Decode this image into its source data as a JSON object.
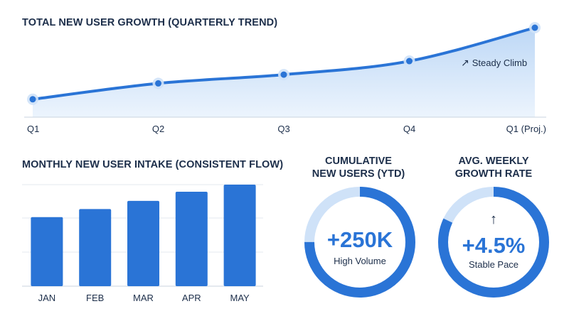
{
  "chart_data": [
    {
      "type": "area",
      "title": "TOTAL NEW USER GROWTH (QUARTERLY TREND)",
      "categories": [
        "Q1",
        "Q2",
        "Q3",
        "Q4",
        "Q1 (Proj.)"
      ],
      "values": [
        10,
        30,
        41,
        58,
        100
      ],
      "ylim": [
        0,
        100
      ],
      "annotation": "Steady Climb",
      "colors": {
        "line": "#2a74d6",
        "fill": "#cfe2f8"
      }
    },
    {
      "type": "bar",
      "title": "MONTHLY NEW USER INTAKE (CONSISTENT FLOW)",
      "categories": [
        "JAN",
        "FEB",
        "MAR",
        "APR",
        "MAY"
      ],
      "values": [
        68,
        76,
        84,
        93,
        100
      ],
      "ylim": [
        0,
        100
      ],
      "colors": {
        "bar": "#2a74d6"
      }
    }
  ],
  "kpis": [
    {
      "title_line1": "CUMULATIVE",
      "title_line2": "NEW USERS (YTD)",
      "value": "+250K",
      "subtitle": "High Volume",
      "progress": 0.75
    },
    {
      "title_line1": "AVG. WEEKLY",
      "title_line2": "GROWTH RATE",
      "value": "+4.5%",
      "subtitle": "Stable Pace",
      "arrow": "↑",
      "progress": 0.82
    }
  ],
  "colors": {
    "accent": "#2a74d6",
    "track": "#cfe2f8",
    "text": "#1c2e4a"
  }
}
